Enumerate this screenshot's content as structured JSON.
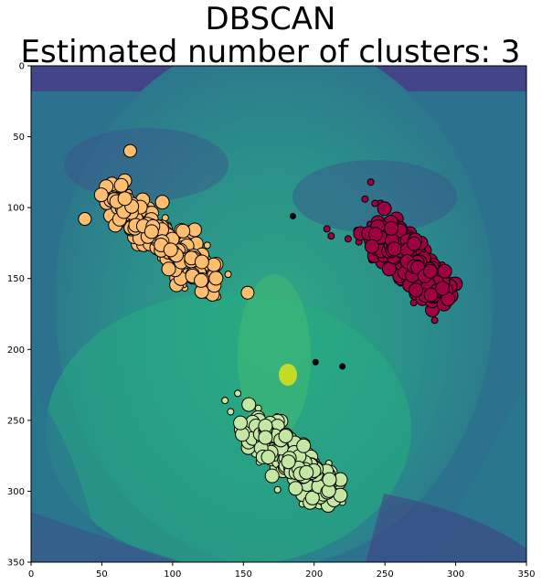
{
  "chart_data": {
    "type": "scatter",
    "title": "DBSCAN",
    "subtitle": "Estimated number of clusters: 3",
    "xlabel": "",
    "ylabel": "",
    "xlim": [
      0,
      350
    ],
    "ylim": [
      350,
      0
    ],
    "x_ticks": [
      0,
      50,
      100,
      150,
      200,
      250,
      300,
      350
    ],
    "y_ticks": [
      0,
      50,
      100,
      150,
      200,
      250,
      300,
      350
    ],
    "background": "grayscale face photo rendered with viridis colormap",
    "grid": false,
    "legend": "none",
    "series": [
      {
        "color": "#fdbf6f",
        "core_center": [
          [
            55,
            88
          ],
          [
            75,
            105
          ],
          [
            95,
            125
          ],
          [
            115,
            142
          ],
          [
            125,
            150
          ]
        ],
        "extra_points": [
          [
            70,
            60
          ],
          [
            38,
            108
          ],
          [
            153,
            160
          ]
        ]
      },
      {
        "color": "#9e0142",
        "core_center": [
          [
            245,
            115
          ],
          [
            262,
            130
          ],
          [
            278,
            150
          ],
          [
            290,
            160
          ]
        ],
        "extra_points": [
          [
            240,
            82
          ],
          [
            236,
            94
          ],
          [
            243,
            97
          ],
          [
            224,
            122
          ],
          [
            209,
            115
          ],
          [
            212,
            120
          ]
        ]
      },
      {
        "color": "#c4e8a3",
        "core_center": [
          [
            160,
            255
          ],
          [
            180,
            275
          ],
          [
            195,
            288
          ],
          [
            210,
            300
          ]
        ],
        "extra_points": [
          [
            137,
            236
          ],
          [
            146,
            231
          ],
          [
            141,
            244
          ]
        ]
      }
    ],
    "noise": {
      "color": "#000000",
      "points": [
        [
          185,
          106
        ],
        [
          201,
          209
        ],
        [
          220,
          212
        ]
      ]
    }
  }
}
